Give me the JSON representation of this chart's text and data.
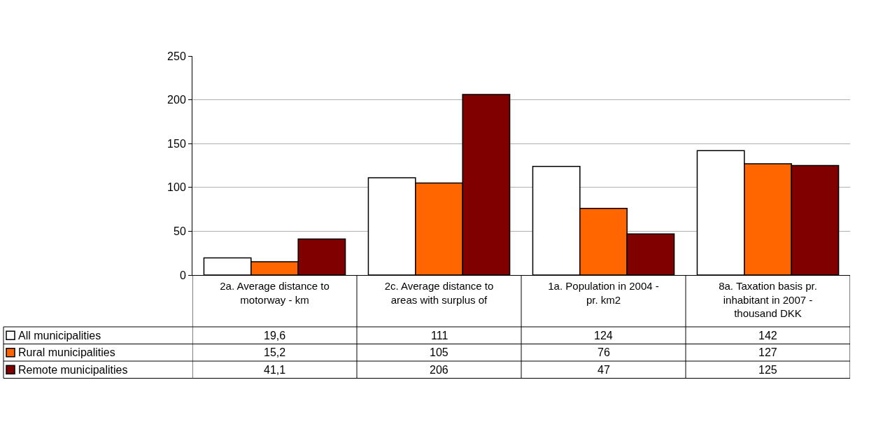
{
  "chart_data": {
    "type": "bar",
    "categories": [
      "2a. Average distance to motorway - km",
      "2c. Average distance to areas with surplus of",
      "1a. Population in 2004 - pr. km2",
      "8a. Taxation basis pr. inhabitant in 2007 - thousand DKK"
    ],
    "series": [
      {
        "name": "All municipalities",
        "color": "#ffffff",
        "values": [
          19.6,
          111,
          124,
          142
        ],
        "value_labels": [
          "19,6",
          "111",
          "124",
          "142"
        ]
      },
      {
        "name": "Rural municipalities",
        "color": "#ff6600",
        "values": [
          15.2,
          105,
          76,
          127
        ],
        "value_labels": [
          "15,2",
          "105",
          "76",
          "127"
        ]
      },
      {
        "name": "Remote municipalities",
        "color": "#800000",
        "values": [
          41.1,
          206,
          47,
          125
        ],
        "value_labels": [
          "41,1",
          "206",
          "47",
          "125"
        ]
      }
    ],
    "ylim": [
      0,
      250
    ],
    "yticks": [
      0,
      50,
      100,
      150,
      200,
      250
    ],
    "grid": "y",
    "legend": "bottom left"
  }
}
